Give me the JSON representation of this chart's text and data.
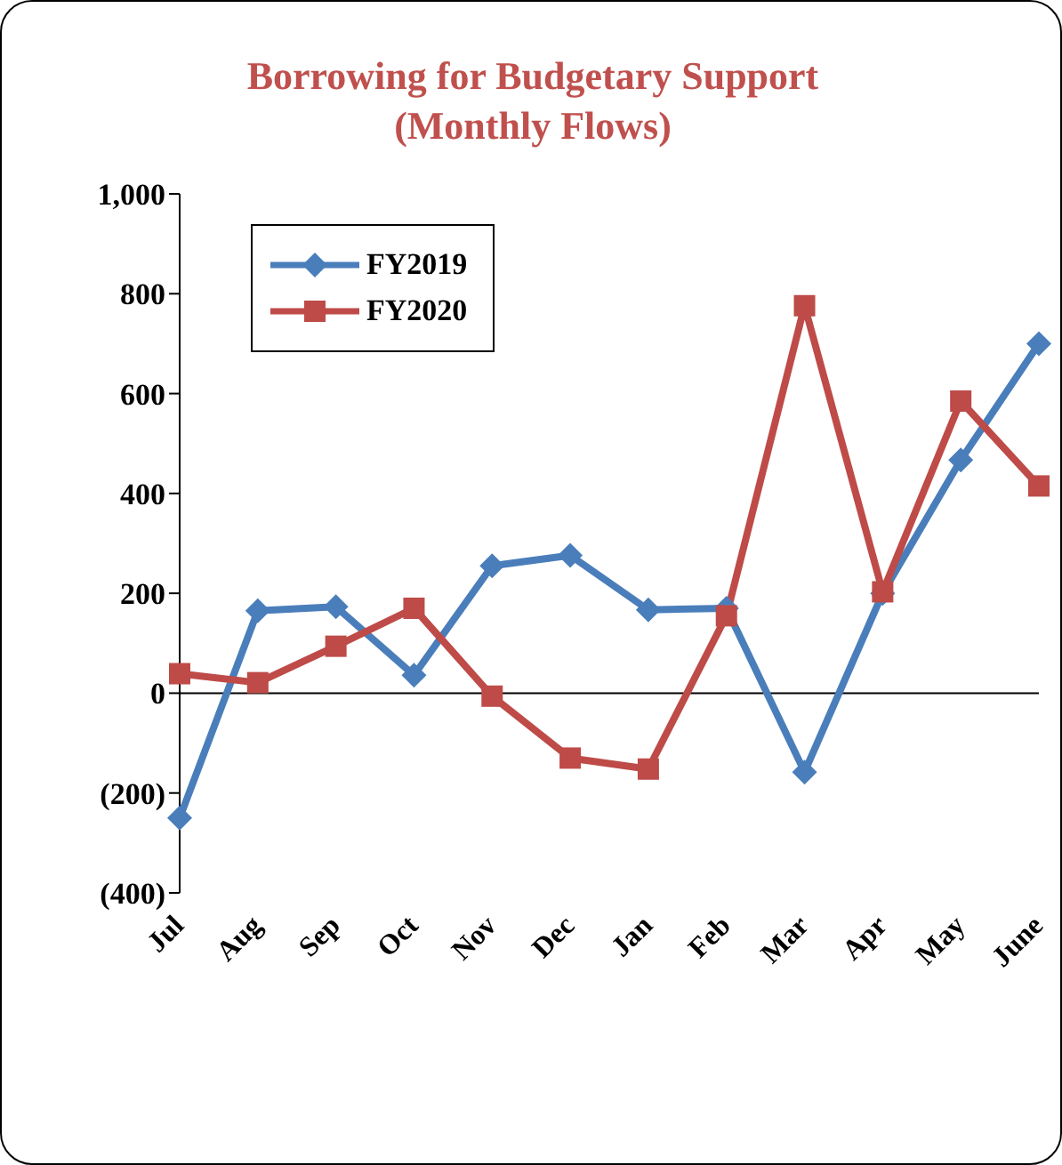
{
  "chart_data": {
    "type": "line",
    "title": "Borrowing for Budgetary Support\n(Monthly Flows)",
    "categories": [
      "Jul",
      "Aug",
      "Sep",
      "Oct",
      "Nov",
      "Dec",
      "Jan",
      "Feb",
      "Mar",
      "Apr",
      "May",
      "June"
    ],
    "series": [
      {
        "name": "FY2019",
        "color": "#4a7ebb",
        "marker": "diamond",
        "values": [
          -250,
          165,
          173,
          36,
          255,
          276,
          167,
          170,
          -158,
          200,
          467,
          700
        ]
      },
      {
        "name": "FY2020",
        "color": "#be4b48",
        "marker": "square",
        "values": [
          39,
          21,
          94,
          170,
          -6,
          -130,
          -152,
          155,
          776,
          203,
          585,
          415
        ]
      }
    ],
    "ylim": [
      -400,
      1000
    ],
    "yticks": [
      {
        "value": -400,
        "label": "(400)"
      },
      {
        "value": -200,
        "label": "(200)"
      },
      0,
      200,
      400,
      600,
      800,
      {
        "value": 1000,
        "label": "1,000"
      }
    ],
    "legend": "top left",
    "line_style": "solid"
  }
}
